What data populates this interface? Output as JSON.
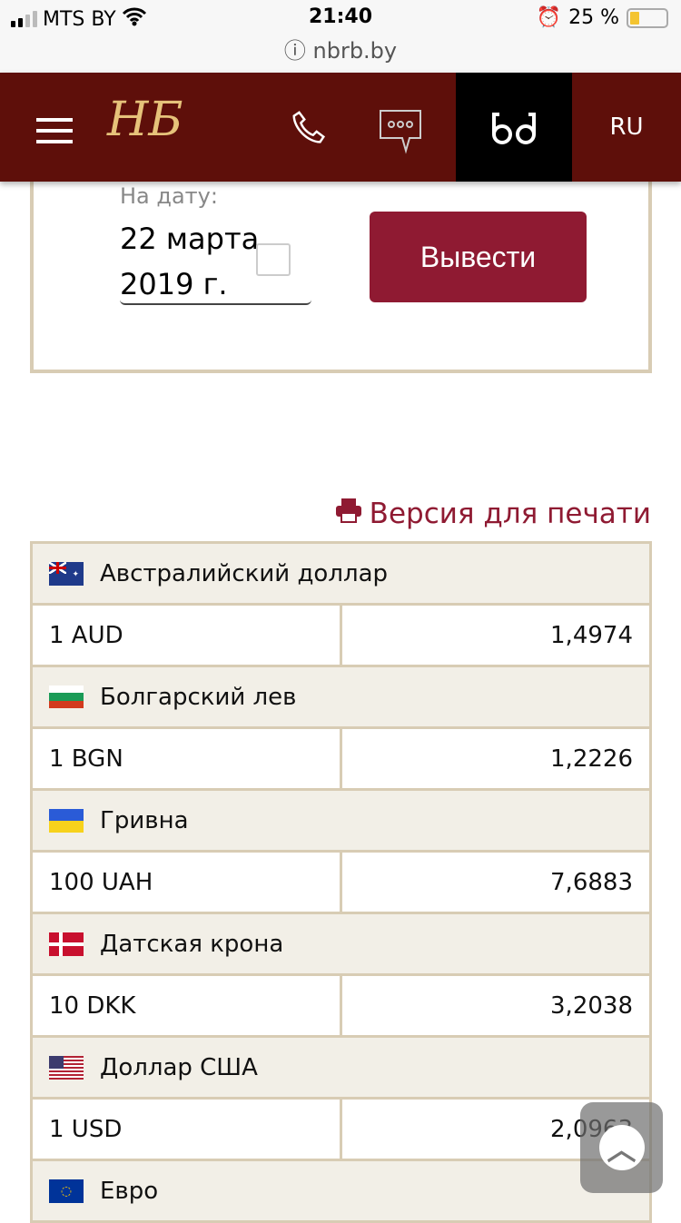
{
  "status": {
    "carrier": "MTS BY",
    "time": "21:40",
    "battery": "25 %",
    "battery_level": 25
  },
  "browser": {
    "url": "nbrb.by"
  },
  "header": {
    "logo": "НБ",
    "lang": "RU",
    "icons": [
      "menu-icon",
      "phone-icon",
      "chat-icon",
      "glasses-icon"
    ],
    "bg": "#5e0f0a"
  },
  "form": {
    "date_label": "На дату:",
    "date_value": "22 марта 2019 г.",
    "submit": "Вывести"
  },
  "print_label": "Версия для печати",
  "rates": [
    {
      "name": "Австралийский доллар",
      "unit": "1 AUD",
      "rate": "1,4974",
      "flag": "au"
    },
    {
      "name": "Болгарский лев",
      "unit": "1 BGN",
      "rate": "1,2226",
      "flag": "bg"
    },
    {
      "name": "Гривна",
      "unit": "100 UAH",
      "rate": "7,6883",
      "flag": "ua"
    },
    {
      "name": "Датская крона",
      "unit": "10 DKK",
      "rate": "3,2038",
      "flag": "dk"
    },
    {
      "name": "Доллар США",
      "unit": "1 USD",
      "rate": "2,0963",
      "flag": "us"
    },
    {
      "name": "Евро",
      "flag": "eu"
    }
  ]
}
